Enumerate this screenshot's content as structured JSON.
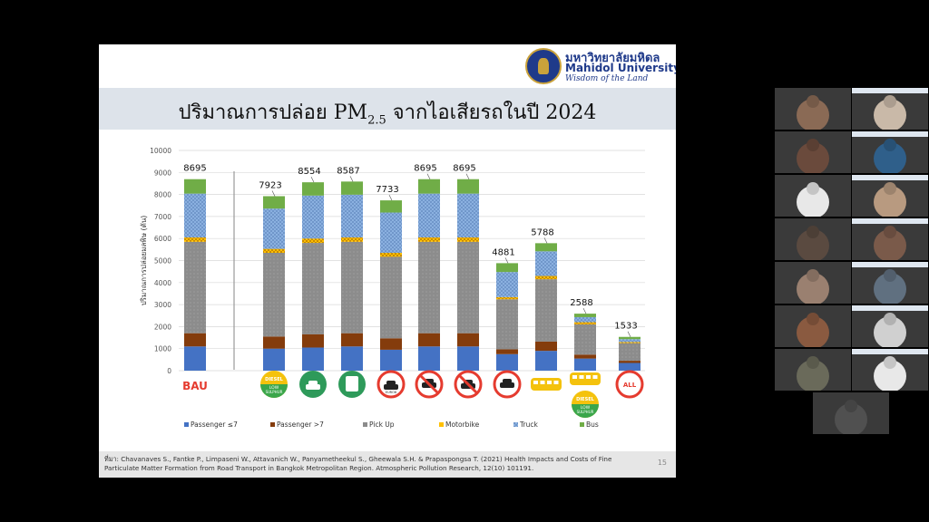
{
  "slide": {
    "logo": {
      "thai": "มหาวิทยาลัยมหิดล",
      "english": "Mahidol University",
      "motto": "Wisdom of the Land"
    },
    "title": {
      "main": "ปริมาณการปล่อย PM",
      "sub": "2.5",
      "rest": " จากไอเสียรถในปี 2024"
    },
    "citation": "ที่มา: Chavanaves S., Fantke P., Limpaseni W., Attavanich W., Panyametheekul S., Gheewala S.H. & Prapaspongsa T. (2021) Health Impacts and Costs of Fine Particulate Matter Formation from Road Transport in Bangkok Metropolitan Region. Atmospheric Pollution Research, 12(10) 101191.",
    "page_number": "15",
    "scenario_labels": {
      "bau": "BAU",
      "diesel": "DIESEL",
      "low": "LOW",
      "sulphur": "SULPHUR",
      "euro": "EURO6",
      "all": "ALL"
    }
  },
  "chart_data": {
    "type": "bar",
    "stacked": true,
    "ylabel": "ปริมาณการปล่อยมลพิษ (ตัน)",
    "ylim": [
      0,
      10000
    ],
    "yticks": [
      0,
      1000,
      2000,
      3000,
      4000,
      5000,
      6000,
      7000,
      8000,
      9000,
      10000
    ],
    "grid": true,
    "legend_position": "bottom",
    "categories": [
      "BAU",
      "Diesel low sulphur",
      "Electric car",
      "Electric bus",
      "Euro 6",
      "No diesel pick-up",
      "No diesel car",
      "Reduced traffic",
      "Mass transit",
      "Mass transit + low sulphur",
      "All"
    ],
    "totals": [
      8695,
      7923,
      8554,
      8587,
      7733,
      8695,
      8695,
      4881,
      5788,
      2588,
      1533
    ],
    "series": [
      {
        "name": "Passenger ≤7",
        "color": "#4472c4",
        "values": [
          1100,
          1000,
          1050,
          1100,
          950,
          1100,
          1100,
          750,
          900,
          550,
          350
        ]
      },
      {
        "name": "Passenger >7",
        "color": "#843c0c",
        "values": [
          600,
          550,
          600,
          600,
          520,
          600,
          600,
          220,
          420,
          180,
          100
        ]
      },
      {
        "name": "Pick Up",
        "color": "#8c8c8c",
        "values": [
          4150,
          3800,
          4150,
          4150,
          3700,
          4150,
          4150,
          2270,
          2830,
          1370,
          800
        ]
      },
      {
        "name": "Motorbike",
        "color": "#ffc000",
        "values": [
          200,
          180,
          200,
          200,
          180,
          200,
          200,
          100,
          150,
          100,
          50
        ]
      },
      {
        "name": "Truck",
        "color": "#8eb4e3",
        "values": [
          1990,
          1830,
          1950,
          1940,
          1830,
          1990,
          1990,
          1140,
          1120,
          230,
          130
        ]
      },
      {
        "name": "Bus",
        "color": "#70ad47",
        "values": [
          655,
          563,
          604,
          597,
          553,
          655,
          655,
          401,
          368,
          158,
          103
        ]
      }
    ]
  },
  "video_tiles": [
    {
      "color": "#8a6a55"
    },
    {
      "color": "#c9b9a8"
    },
    {
      "color": "#6a4a3c"
    },
    {
      "color": "#2f5f8a"
    },
    {
      "color": "#e8e8e8"
    },
    {
      "color": "#b89a80"
    },
    {
      "color": "#5a4a40"
    },
    {
      "color": "#7a5a4a"
    },
    {
      "color": "#9a8070"
    },
    {
      "color": "#607080"
    },
    {
      "color": "#8a5a40"
    },
    {
      "color": "#d0d0d0"
    },
    {
      "color": "#6a6a5a"
    },
    {
      "color": "#e8e8e8"
    },
    {
      "color": "#505050"
    }
  ]
}
